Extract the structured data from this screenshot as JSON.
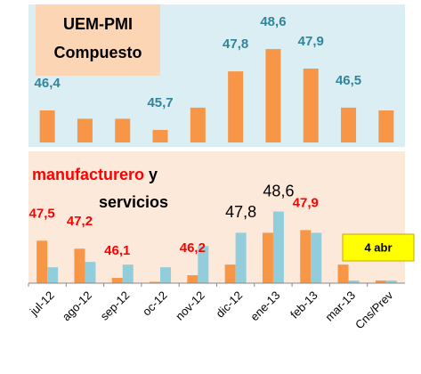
{
  "chart_data": [
    {
      "type": "bar",
      "title": [
        "UEM-PMI",
        "Compuesto"
      ],
      "series": [
        {
          "color": "#f79646",
          "values": [
            46.4,
            46.1,
            46.1,
            45.7,
            46.5,
            47.8,
            48.6,
            47.9,
            46.5,
            46.4
          ],
          "value_labels": [
            "46,4",
            null,
            null,
            "45,7",
            null,
            "47,8",
            "48,6",
            "47,9",
            "46,5",
            null
          ],
          "label_color": "#31849b"
        }
      ],
      "ylim": [
        45.25,
        50.2
      ],
      "background": "#dbeef3"
    },
    {
      "type": "bar",
      "title": [
        "manufacturero",
        "y",
        "servicios"
      ],
      "categories": [
        "jul-12",
        "ago-12",
        "sep-12",
        "oc-12",
        "nov-12",
        "dic-12",
        "ene-13",
        "feb-13",
        "mar-13",
        "Cns/Prev"
      ],
      "series": [
        {
          "color": "#f79646",
          "values": [
            47.5,
            47.2,
            46.1,
            45.95,
            46.2,
            46.6,
            47.8,
            47.9,
            46.6,
            46.0
          ],
          "value_labels": [
            "47,5",
            "47,2",
            "46,1",
            null,
            "46,2",
            null,
            null,
            "47,9",
            null,
            null
          ],
          "label_color": "#ff0000"
        },
        {
          "color": "#92cddc",
          "values": [
            46.5,
            46.7,
            46.6,
            46.5,
            47.3,
            47.8,
            48.6,
            47.8,
            46.0,
            46.0
          ],
          "value_labels": [
            null,
            null,
            null,
            null,
            null,
            "47,8",
            "48,6",
            null,
            null,
            null
          ],
          "label_color": "#000000"
        }
      ],
      "ylim": [
        45.9,
        50.8
      ],
      "background": "#fde9d9",
      "annotation": "4 abr"
    }
  ]
}
